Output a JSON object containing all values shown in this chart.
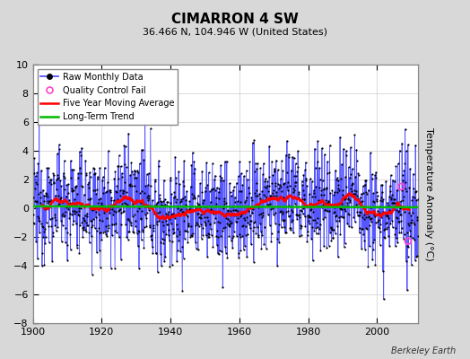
{
  "title": "CIMARRON 4 SW",
  "subtitle": "36.466 N, 104.946 W (United States)",
  "attribution": "Berkeley Earth",
  "ylabel": "Temperature Anomaly (°C)",
  "year_start": 1900,
  "year_end": 2012,
  "ylim": [
    -8,
    10
  ],
  "yticks": [
    -8,
    -6,
    -4,
    -2,
    0,
    2,
    4,
    6,
    8,
    10
  ],
  "xticks": [
    1900,
    1920,
    1940,
    1960,
    1980,
    2000
  ],
  "bg_color": "#d8d8d8",
  "plot_bg_color": "#ffffff",
  "raw_line_color": "#4444ff",
  "raw_dot_color": "#000000",
  "moving_avg_color": "#ff0000",
  "trend_color": "#00bb00",
  "qc_fail_color": "#ff44cc",
  "seed": 12345,
  "qc_fail_points": [
    [
      2007.0,
      1.5
    ],
    [
      2009.0,
      -2.3
    ]
  ],
  "noise_std": 1.8,
  "moving_avg_window": 60,
  "title_fontsize": 11,
  "subtitle_fontsize": 8,
  "tick_fontsize": 8,
  "ylabel_fontsize": 8
}
